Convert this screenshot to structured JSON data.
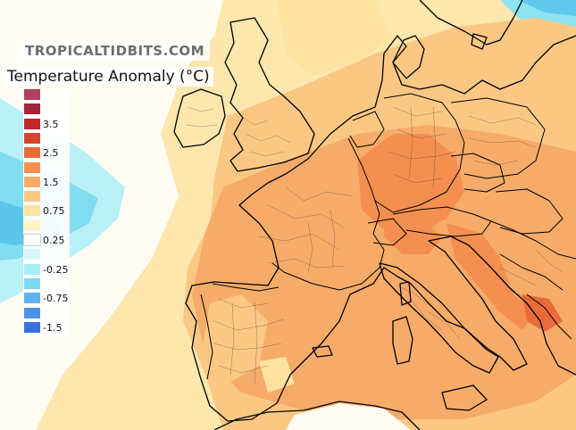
{
  "watermark": "TROPICALTIDBITS.COM",
  "legend": {
    "title": "Temperature Anomaly (°C)",
    "colors": [
      "#b04060",
      "#a3243a",
      "#c0262a",
      "#d8432c",
      "#ea6b3a",
      "#f48f50",
      "#f7ab68",
      "#fbc884",
      "#fde2a0",
      "#fff4c6",
      "#ffffff",
      "#d8f6fb",
      "#a8eef7",
      "#7fd8f2",
      "#5fb4ee",
      "#4a92e8",
      "#3a70dc"
    ],
    "ticks": [
      {
        "label": "3.5",
        "index": 2
      },
      {
        "label": "2.5",
        "index": 4
      },
      {
        "label": "1.5",
        "index": 6
      },
      {
        "label": "0.75",
        "index": 8
      },
      {
        "label": "0.25",
        "index": 10
      },
      {
        "label": "-0.25",
        "index": 12
      },
      {
        "label": "-0.75",
        "index": 14
      },
      {
        "label": "-1.5",
        "index": 16
      }
    ]
  }
}
